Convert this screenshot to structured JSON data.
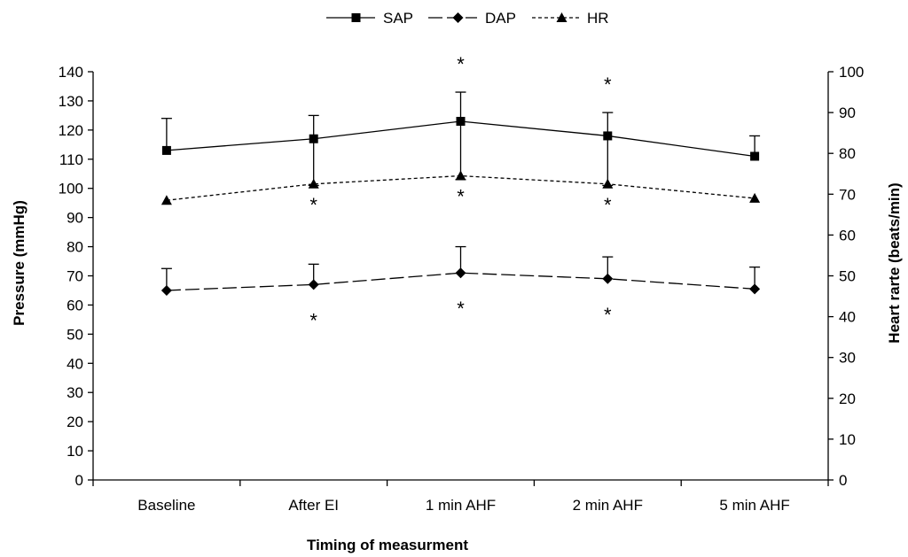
{
  "chart_data": {
    "type": "line",
    "title": "",
    "categories": [
      "Baseline",
      "After EI",
      "1 min AHF",
      "2 min AHF",
      "5 min AHF"
    ],
    "xlabel": "Timing of measurment",
    "ylabel": "Pressure (mmHg)",
    "y2label": "Heart rarte (beats/min)",
    "ylim": [
      0,
      140
    ],
    "y2lim": [
      0,
      100
    ],
    "yticks": [
      0,
      10,
      20,
      30,
      40,
      50,
      60,
      70,
      80,
      90,
      100,
      110,
      120,
      130,
      140
    ],
    "y2ticks": [
      0,
      10,
      20,
      30,
      40,
      50,
      60,
      70,
      80,
      90,
      100
    ],
    "legend_position": "top-center",
    "grid": false,
    "series": [
      {
        "name": "SAP",
        "axis": "left",
        "marker": "square",
        "line": "solid",
        "values": [
          113,
          117,
          123,
          118,
          111
        ],
        "error_upper": [
          124,
          125,
          133,
          126,
          118
        ],
        "error_lower": [
          null,
          101,
          103,
          101,
          null
        ],
        "significant_marks": [
          false,
          false,
          true,
          true,
          false
        ]
      },
      {
        "name": "DAP",
        "axis": "left",
        "marker": "diamond",
        "line": "long-dash",
        "values": [
          65,
          67,
          71,
          69,
          65.5
        ],
        "error_upper": [
          72.5,
          74,
          80,
          76.5,
          73
        ],
        "error_lower": [
          null,
          null,
          null,
          null,
          null
        ],
        "significant_marks": [
          false,
          true,
          true,
          true,
          false
        ]
      },
      {
        "name": "HR",
        "axis": "right",
        "marker": "triangle",
        "line": "dotted",
        "values": [
          68.5,
          72.5,
          74.5,
          72.5,
          69
        ],
        "error_upper": [
          null,
          null,
          null,
          null,
          null
        ],
        "error_lower": [
          null,
          null,
          null,
          null,
          null
        ],
        "significant_marks": [
          false,
          true,
          true,
          true,
          false
        ]
      }
    ],
    "significance_symbol": "*"
  }
}
